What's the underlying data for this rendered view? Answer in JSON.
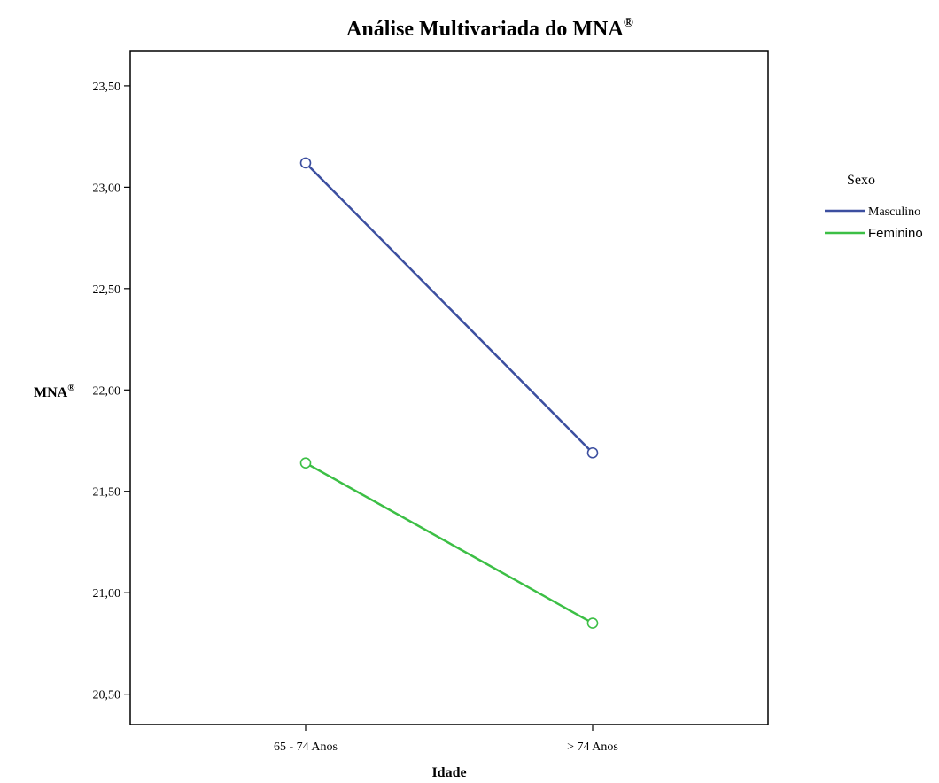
{
  "chart_data": {
    "type": "line",
    "title": "Análise Multivariada do MNA",
    "title_superscript": "®",
    "xlabel": "Idade",
    "ylabel": "MNA",
    "ylabel_superscript": "®",
    "categories": [
      "65 - 74 Anos",
      "> 74 Anos"
    ],
    "ylim": [
      20.35,
      23.67
    ],
    "yticks": [
      20.5,
      21.0,
      21.5,
      22.0,
      22.5,
      23.0,
      23.5
    ],
    "ytick_labels": [
      "20,50",
      "21,00",
      "21,50",
      "22,00",
      "22,50",
      "23,00",
      "23,50"
    ],
    "grid": false,
    "markers": "open-circle",
    "legend": {
      "title": "Sexo",
      "placement": "right"
    },
    "series": [
      {
        "name": "Masculino",
        "color": "#3c4fa0",
        "values": [
          23.12,
          21.69
        ]
      },
      {
        "name": "Feminino",
        "color": "#3cbf45",
        "values": [
          21.64,
          20.85
        ]
      }
    ]
  }
}
